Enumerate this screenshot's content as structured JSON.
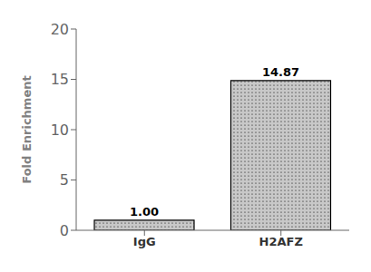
{
  "chart_data": {
    "type": "bar",
    "categories": [
      "IgG",
      "H2AFZ"
    ],
    "values": [
      1.0,
      14.87
    ],
    "value_labels": [
      "1.00",
      "14.87"
    ],
    "data_labels": true,
    "ylabel": "Fold Enrichment",
    "ylim": [
      0,
      20
    ],
    "yticks": [
      0,
      5,
      10,
      15,
      20
    ],
    "color": "#c8c8c8",
    "grid": false
  }
}
